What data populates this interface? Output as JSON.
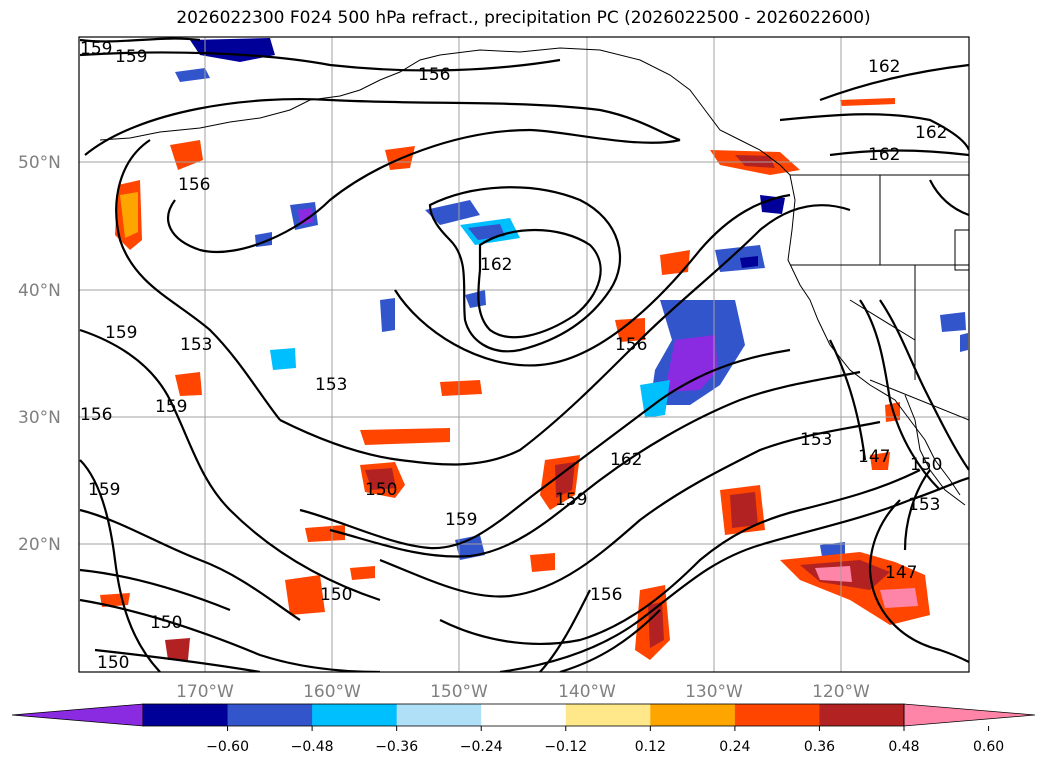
{
  "title": "2026022300 F024 500 hPa refract., precipitation PC (2026022500 - 2026022600)",
  "lat_labels": [
    "50°N",
    "40°N",
    "30°N",
    "20°N"
  ],
  "lon_labels": [
    "170°W",
    "160°W",
    "150°W",
    "140°W",
    "130°W",
    "120°W"
  ],
  "contour_labels": [
    "159",
    "159",
    "156",
    "162",
    "156",
    "162",
    "162",
    "162",
    "156",
    "153",
    "153",
    "159",
    "159",
    "156",
    "159",
    "150",
    "159",
    "162",
    "159",
    "156",
    "150",
    "153",
    "147",
    "150",
    "153",
    "147",
    "150",
    "150"
  ],
  "colorbar": {
    "ticks": [
      "−0.60",
      "−0.48",
      "−0.36",
      "−0.24",
      "−0.12",
      "0.12",
      "0.24",
      "0.36",
      "0.48",
      "0.60"
    ],
    "colors": [
      "#8a2be2",
      "#000099",
      "#3355cc",
      "#00bfff",
      "#b0e0f8",
      "#ffffff",
      "#ffe88a",
      "#ffa500",
      "#ff4500",
      "#b22222",
      "#ff85a8"
    ]
  }
}
